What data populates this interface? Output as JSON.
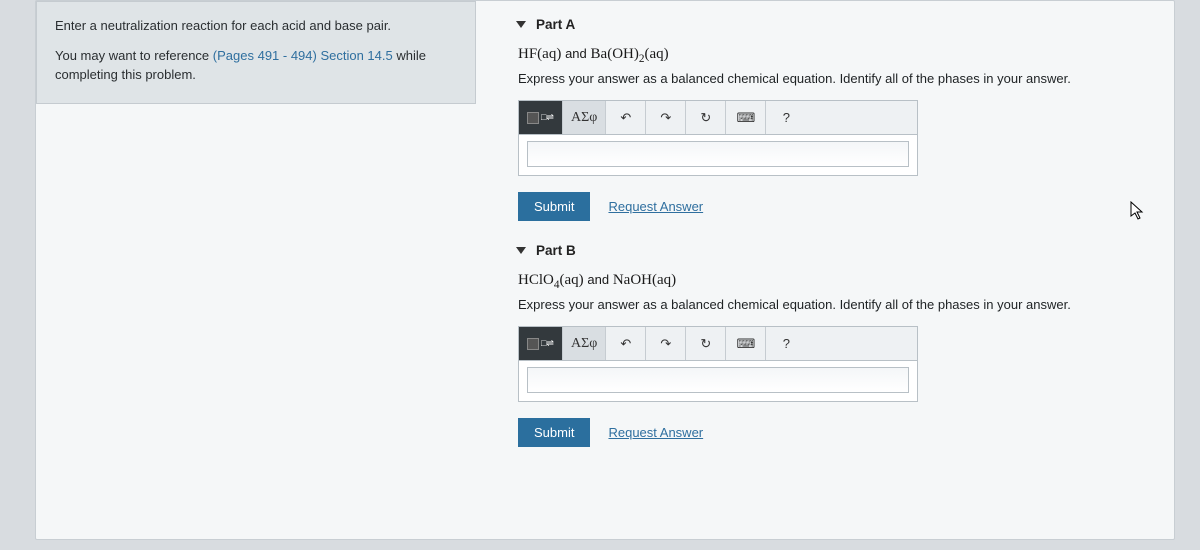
{
  "left": {
    "title": "Enter a neutralization reaction for each acid and base pair.",
    "ref_prefix": "You may want to reference ",
    "ref_link": "(Pages 491 - 494) Section 14.5",
    "ref_suffix": " while completing this problem."
  },
  "parts": [
    {
      "label": "Part A",
      "equation_html": "HF(aq) <span style='font-family:Arial;font-size:13px'>and</span> Ba(OH)<sub>2</sub>(aq)",
      "instruction": "Express your answer as a balanced chemical equation. Identify all of the phases in your answer.",
      "answer_value": ""
    },
    {
      "label": "Part B",
      "equation_html": "HClO<sub>4</sub>(aq) <span style='font-family:Arial;font-size:13px'>and</span> NaOH(aq)",
      "instruction": "Express your answer as a balanced chemical equation. Identify all of the phases in your answer.",
      "answer_value": ""
    }
  ],
  "toolbar": {
    "greek": "ΑΣφ",
    "undo": "↶",
    "redo": "↷",
    "reset": "↻",
    "keyboard": "⌨",
    "help": "?"
  },
  "actions": {
    "submit": "Submit",
    "request": "Request Answer"
  }
}
